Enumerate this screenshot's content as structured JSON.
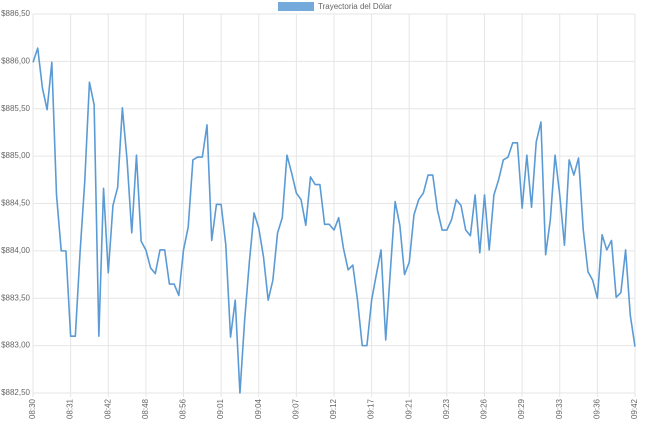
{
  "chart_data": {
    "type": "line",
    "legend": "top",
    "grid": true,
    "series": [
      {
        "name": "Trayectoria del Dólar",
        "color": "#5b9bd5",
        "values": [
          885.99,
          886.14,
          885.72,
          885.49,
          885.99,
          884.59,
          884.0,
          884.0,
          883.1,
          883.1,
          883.98,
          884.73,
          885.78,
          885.54,
          883.1,
          884.66,
          883.77,
          884.48,
          884.67,
          885.51,
          884.96,
          884.19,
          885.01,
          884.1,
          884.01,
          883.82,
          883.76,
          884.01,
          884.01,
          883.65,
          883.65,
          883.53,
          884.01,
          884.25,
          884.96,
          884.99,
          884.99,
          885.33,
          884.11,
          884.49,
          884.49,
          884.06,
          883.09,
          883.48,
          882.5,
          883.27,
          883.88,
          884.4,
          884.24,
          883.94,
          883.48,
          883.69,
          884.19,
          884.35,
          885.01,
          884.82,
          884.61,
          884.54,
          884.27,
          884.78,
          884.7,
          884.7,
          884.28,
          884.28,
          884.22,
          884.35,
          884.03,
          883.8,
          883.85,
          883.48,
          883.0,
          883.0,
          883.48,
          883.75,
          884.01,
          883.06,
          883.8,
          884.52,
          884.27,
          883.75,
          883.88,
          884.38,
          884.54,
          884.61,
          884.8,
          884.8,
          884.43,
          884.22,
          884.22,
          884.33,
          884.54,
          884.48,
          884.22,
          884.16,
          884.59,
          883.98,
          884.59,
          884.01,
          884.59,
          884.75,
          884.96,
          884.99,
          885.14,
          885.14,
          884.45,
          885.01,
          884.46,
          885.15,
          885.36,
          883.96,
          884.33,
          885.01,
          884.59,
          884.06,
          884.96,
          884.8,
          884.98,
          884.22,
          883.78,
          883.69,
          883.5,
          884.17,
          884.01,
          884.11,
          883.51,
          883.56,
          884.01,
          883.32,
          882.99
        ]
      }
    ],
    "categories": [
      "08:30",
      null,
      null,
      null,
      null,
      null,
      null,
      null,
      "08:31",
      null,
      null,
      null,
      null,
      null,
      null,
      null,
      "08:42",
      null,
      null,
      null,
      null,
      null,
      null,
      null,
      "08:48",
      null,
      null,
      null,
      null,
      null,
      null,
      null,
      "08:56",
      null,
      null,
      null,
      null,
      null,
      null,
      null,
      "09:01",
      null,
      null,
      null,
      null,
      null,
      null,
      null,
      "09:04",
      null,
      null,
      null,
      null,
      null,
      null,
      null,
      "09:07",
      null,
      null,
      null,
      null,
      null,
      null,
      null,
      "09:12",
      null,
      null,
      null,
      null,
      null,
      null,
      null,
      "09:17",
      null,
      null,
      null,
      null,
      null,
      null,
      null,
      "09:21",
      null,
      null,
      null,
      null,
      null,
      null,
      null,
      "09:23",
      null,
      null,
      null,
      null,
      null,
      null,
      null,
      "09:26",
      null,
      null,
      null,
      null,
      null,
      null,
      null,
      "09:29",
      null,
      null,
      null,
      null,
      null,
      null,
      null,
      "09:33",
      null,
      null,
      null,
      null,
      null,
      null,
      null,
      "09:36",
      null,
      null,
      null,
      null,
      null,
      null,
      null,
      "09:42"
    ],
    "ylim": [
      882.5,
      886.5
    ],
    "yticks": [
      {
        "value": 882.5,
        "label": "$882,50"
      },
      {
        "value": 883,
        "label": "$883,00"
      },
      {
        "value": 883.5,
        "label": "$883,50"
      },
      {
        "value": 884,
        "label": "$884,00"
      },
      {
        "value": 884.5,
        "label": "$884,50"
      },
      {
        "value": 885,
        "label": "$885,00"
      },
      {
        "value": 885.5,
        "label": "$885,50"
      },
      {
        "value": 886,
        "label": "$886,00"
      },
      {
        "value": 886.5,
        "label": "$886,50"
      }
    ]
  }
}
